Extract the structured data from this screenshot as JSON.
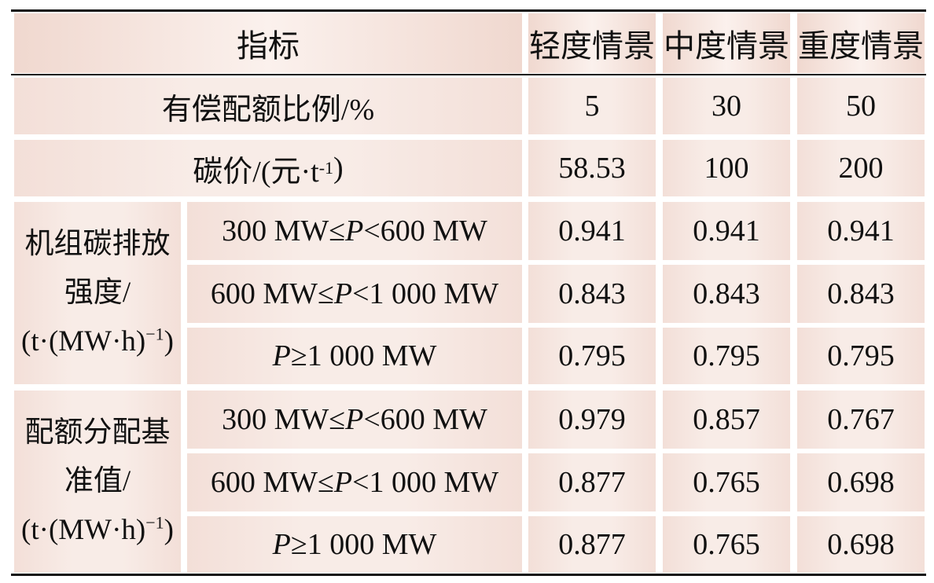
{
  "header": {
    "indicator": "指标",
    "scenarios": [
      "轻度情景",
      "中度情景",
      "重度情景"
    ]
  },
  "rows": {
    "paid_ratio": {
      "label": "有偿配额比例/%",
      "values": [
        "5",
        "30",
        "50"
      ]
    },
    "carbon_price": {
      "label_prefix": "碳价/(元·t",
      "label_sup": "-1",
      "label_suffix": ")",
      "values": [
        "58.53",
        "100",
        "200"
      ]
    }
  },
  "groups": [
    {
      "label_lines": [
        "机组碳排放",
        "强度/"
      ],
      "unit_prefix": "(t·(MW·h)",
      "unit_sup": "−1",
      "unit_suffix": ")",
      "rows": [
        {
          "pre": "300 MW≤",
          "var": "P",
          "post": "<600 MW",
          "values": [
            "0.941",
            "0.941",
            "0.941"
          ]
        },
        {
          "pre": "600 MW≤",
          "var": "P",
          "post": "<1 000 MW",
          "values": [
            "0.843",
            "0.843",
            "0.843"
          ]
        },
        {
          "pre": "",
          "var": "P",
          "post": "≥1 000 MW",
          "values": [
            "0.795",
            "0.795",
            "0.795"
          ]
        }
      ]
    },
    {
      "label_lines": [
        "配额分配基",
        "准值/"
      ],
      "unit_prefix": "(t·(MW·h)",
      "unit_sup": "−1",
      "unit_suffix": ")",
      "rows": [
        {
          "pre": "300 MW≤",
          "var": "P",
          "post": "<600 MW",
          "values": [
            "0.979",
            "0.857",
            "0.767"
          ]
        },
        {
          "pre": "600 MW≤",
          "var": "P",
          "post": "<1 000 MW",
          "values": [
            "0.877",
            "0.765",
            "0.698"
          ]
        },
        {
          "pre": "",
          "var": "P",
          "post": "≥1 000 MW",
          "values": [
            "0.877",
            "0.765",
            "0.698"
          ]
        }
      ]
    }
  ]
}
